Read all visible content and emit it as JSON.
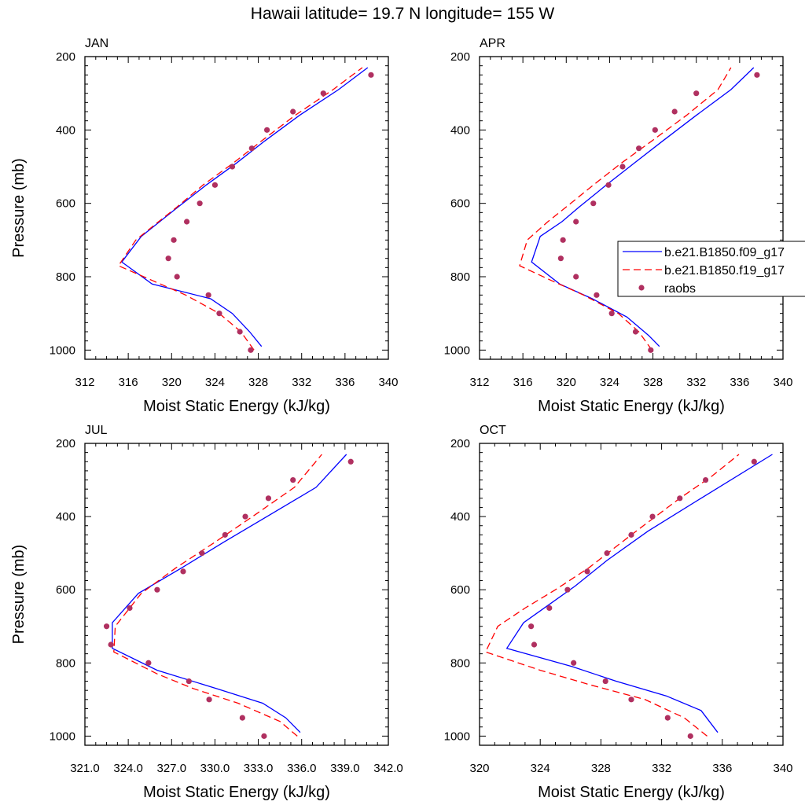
{
  "page": {
    "title": "Hawaii  latitude= 19.7 N longitude= 155 W"
  },
  "legend": {
    "position": "right of APR panel, clipped at right edge",
    "entries": [
      {
        "label": "b.e21.B1850.f09_g17",
        "style": "solid",
        "color": "#0000ff"
      },
      {
        "label": "b.e21.B1850.f19_g17",
        "style": "dashed",
        "color": "#ff0000"
      },
      {
        "label": "raobs",
        "style": "dot",
        "color": "#b03060"
      }
    ]
  },
  "chart_data": [
    {
      "type": "line",
      "title": "JAN",
      "xlabel": "Moist Static Energy (kJ/kg)",
      "ylabel": "Pressure (mb)",
      "xlim": [
        312,
        340
      ],
      "ylim": [
        1025,
        200
      ],
      "xticks": [
        312,
        316,
        320,
        324,
        328,
        332,
        336,
        340
      ],
      "xtick_labels": [
        "312",
        "316",
        "320",
        "324",
        "328",
        "332",
        "336",
        "340"
      ],
      "yticks": [
        200,
        400,
        600,
        800,
        1000
      ],
      "ytick_labels": [
        "200",
        "400",
        "600",
        "800",
        "1000"
      ],
      "grid": false,
      "series": [
        {
          "name": "b.e21.B1850.f09_g17",
          "style": "solid",
          "color": "#0000ff",
          "points": [
            [
              328.3,
              990
            ],
            [
              327.2,
              950
            ],
            [
              325.6,
              900
            ],
            [
              323.6,
              860
            ],
            [
              318.2,
              820
            ],
            [
              315.4,
              760
            ],
            [
              317.2,
              690
            ],
            [
              318.9,
              650
            ],
            [
              320.6,
              610
            ],
            [
              323.2,
              550
            ],
            [
              326.0,
              490
            ],
            [
              328.6,
              430
            ],
            [
              331.8,
              360
            ],
            [
              335.4,
              290
            ],
            [
              338.1,
              230
            ]
          ]
        },
        {
          "name": "b.e21.B1850.f19_g17",
          "style": "dashed",
          "color": "#ff0000",
          "points": [
            [
              327.6,
              1000
            ],
            [
              326.4,
              950
            ],
            [
              324.4,
              900
            ],
            [
              321.3,
              850
            ],
            [
              318.2,
              810
            ],
            [
              315.1,
              770
            ],
            [
              316.7,
              700
            ],
            [
              318.8,
              650
            ],
            [
              320.5,
              610
            ],
            [
              322.9,
              550
            ],
            [
              325.7,
              490
            ],
            [
              328.3,
              430
            ],
            [
              331.4,
              360
            ],
            [
              334.9,
              290
            ],
            [
              337.6,
              230
            ]
          ]
        },
        {
          "name": "raobs",
          "style": "dot",
          "color": "#b03060",
          "points": [
            [
              327.3,
              1000
            ],
            [
              326.3,
              950
            ],
            [
              324.4,
              900
            ],
            [
              323.4,
              850
            ],
            [
              320.5,
              800
            ],
            [
              319.7,
              750
            ],
            [
              320.2,
              700
            ],
            [
              321.4,
              650
            ],
            [
              322.6,
              600
            ],
            [
              324.0,
              550
            ],
            [
              325.6,
              500
            ],
            [
              327.4,
              450
            ],
            [
              328.8,
              400
            ],
            [
              331.2,
              350
            ],
            [
              334.0,
              300
            ],
            [
              338.4,
              250
            ]
          ]
        }
      ]
    },
    {
      "type": "line",
      "title": "APR",
      "xlabel": "Moist Static Energy (kJ/kg)",
      "ylabel": "",
      "xlim": [
        312,
        340
      ],
      "ylim": [
        1025,
        200
      ],
      "xticks": [
        312,
        316,
        320,
        324,
        328,
        332,
        336,
        340
      ],
      "xtick_labels": [
        "312",
        "316",
        "320",
        "324",
        "328",
        "332",
        "336",
        "340"
      ],
      "yticks": [
        200,
        400,
        600,
        800,
        1000
      ],
      "ytick_labels": [
        "200",
        "400",
        "600",
        "800",
        "1000"
      ],
      "grid": false,
      "series": [
        {
          "name": "b.e21.B1850.f09_g17",
          "style": "solid",
          "color": "#0000ff",
          "points": [
            [
              328.6,
              990
            ],
            [
              327.6,
              960
            ],
            [
              325.6,
              910
            ],
            [
              322.4,
              860
            ],
            [
              319.4,
              820
            ],
            [
              316.8,
              760
            ],
            [
              317.6,
              690
            ],
            [
              319.6,
              650
            ],
            [
              321.2,
              610
            ],
            [
              323.7,
              550
            ],
            [
              326.3,
              490
            ],
            [
              328.9,
              430
            ],
            [
              332.0,
              360
            ],
            [
              335.2,
              290
            ],
            [
              337.3,
              230
            ]
          ]
        },
        {
          "name": "b.e21.B1850.f19_g17",
          "style": "dashed",
          "color": "#ff0000",
          "points": [
            [
              327.9,
              1000
            ],
            [
              326.7,
              950
            ],
            [
              324.8,
              900
            ],
            [
              321.6,
              850
            ],
            [
              318.6,
              810
            ],
            [
              315.7,
              770
            ],
            [
              316.4,
              700
            ],
            [
              318.3,
              650
            ],
            [
              320.0,
              610
            ],
            [
              322.5,
              550
            ],
            [
              325.1,
              490
            ],
            [
              327.9,
              430
            ],
            [
              331.1,
              360
            ],
            [
              334.0,
              290
            ],
            [
              335.2,
              230
            ]
          ]
        },
        {
          "name": "raobs",
          "style": "dot",
          "color": "#b03060",
          "points": [
            [
              327.8,
              1000
            ],
            [
              326.4,
              950
            ],
            [
              324.2,
              900
            ],
            [
              322.8,
              850
            ],
            [
              320.9,
              800
            ],
            [
              319.5,
              750
            ],
            [
              319.7,
              700
            ],
            [
              320.9,
              650
            ],
            [
              322.5,
              600
            ],
            [
              323.9,
              550
            ],
            [
              325.2,
              500
            ],
            [
              326.7,
              450
            ],
            [
              328.2,
              400
            ],
            [
              330.0,
              350
            ],
            [
              332.0,
              300
            ],
            [
              337.6,
              250
            ]
          ]
        }
      ]
    },
    {
      "type": "line",
      "title": "JUL",
      "xlabel": "Moist Static Energy (kJ/kg)",
      "ylabel": "Pressure (mb)",
      "xlim": [
        321,
        342
      ],
      "ylim": [
        1025,
        200
      ],
      "xticks": [
        321,
        324,
        327,
        330,
        333,
        336,
        339,
        342
      ],
      "xtick_labels": [
        "321.0",
        "324.0",
        "327.0",
        "330.0",
        "333.0",
        "336.0",
        "339.0",
        "342.0"
      ],
      "yticks": [
        200,
        400,
        600,
        800,
        1000
      ],
      "ytick_labels": [
        "200",
        "400",
        "600",
        "800",
        "1000"
      ],
      "grid": false,
      "series": [
        {
          "name": "b.e21.B1850.f09_g17",
          "style": "solid",
          "color": "#0000ff",
          "points": [
            [
              335.9,
              990
            ],
            [
              334.9,
              950
            ],
            [
              333.3,
              910
            ],
            [
              330.1,
              870
            ],
            [
              326.0,
              820
            ],
            [
              322.9,
              760
            ],
            [
              322.9,
              690
            ],
            [
              324.7,
              610
            ],
            [
              327.7,
              540
            ],
            [
              330.6,
              470
            ],
            [
              333.6,
              400
            ],
            [
              337.0,
              320
            ],
            [
              339.1,
              230
            ]
          ]
        },
        {
          "name": "b.e21.B1850.f19_g17",
          "style": "dashed",
          "color": "#ff0000",
          "points": [
            [
              335.7,
              1000
            ],
            [
              334.5,
              960
            ],
            [
              331.6,
              910
            ],
            [
              328.5,
              870
            ],
            [
              326.0,
              830
            ],
            [
              323.0,
              770
            ],
            [
              323.1,
              700
            ],
            [
              324.9,
              610
            ],
            [
              327.3,
              540
            ],
            [
              330.0,
              470
            ],
            [
              332.6,
              400
            ],
            [
              335.5,
              320
            ],
            [
              337.4,
              230
            ]
          ]
        },
        {
          "name": "raobs",
          "style": "dot",
          "color": "#b03060",
          "points": [
            [
              333.4,
              1000
            ],
            [
              331.9,
              950
            ],
            [
              329.6,
              900
            ],
            [
              328.2,
              850
            ],
            [
              325.4,
              800
            ],
            [
              322.8,
              750
            ],
            [
              322.5,
              700
            ],
            [
              324.1,
              650
            ],
            [
              326.0,
              600
            ],
            [
              327.8,
              550
            ],
            [
              329.1,
              500
            ],
            [
              330.7,
              450
            ],
            [
              332.1,
              400
            ],
            [
              333.7,
              350
            ],
            [
              335.4,
              300
            ],
            [
              339.4,
              250
            ]
          ]
        }
      ]
    },
    {
      "type": "line",
      "title": "OCT",
      "xlabel": "Moist Static Energy (kJ/kg)",
      "ylabel": "",
      "xlim": [
        320,
        340
      ],
      "ylim": [
        1025,
        200
      ],
      "xticks": [
        320,
        324,
        328,
        332,
        336,
        340
      ],
      "xtick_labels": [
        "320",
        "324",
        "328",
        "332",
        "336",
        "340"
      ],
      "yticks": [
        200,
        400,
        600,
        800,
        1000
      ],
      "ytick_labels": [
        "200",
        "400",
        "600",
        "800",
        "1000"
      ],
      "grid": false,
      "series": [
        {
          "name": "b.e21.B1850.f09_g17",
          "style": "solid",
          "color": "#0000ff",
          "points": [
            [
              335.7,
              990
            ],
            [
              334.6,
              930
            ],
            [
              332.3,
              890
            ],
            [
              329.0,
              850
            ],
            [
              326.1,
              810
            ],
            [
              321.8,
              760
            ],
            [
              322.9,
              690
            ],
            [
              324.6,
              640
            ],
            [
              326.3,
              590
            ],
            [
              328.4,
              520
            ],
            [
              331.1,
              440
            ],
            [
              334.6,
              350
            ],
            [
              339.3,
              230
            ]
          ]
        },
        {
          "name": "b.e21.B1850.f19_g17",
          "style": "dashed",
          "color": "#ff0000",
          "points": [
            [
              335.0,
              1000
            ],
            [
              333.5,
              950
            ],
            [
              330.9,
              900
            ],
            [
              327.3,
              860
            ],
            [
              324.0,
              820
            ],
            [
              320.4,
              770
            ],
            [
              321.2,
              700
            ],
            [
              323.0,
              650
            ],
            [
              325.0,
              600
            ],
            [
              327.2,
              540
            ],
            [
              330.0,
              450
            ],
            [
              333.2,
              350
            ],
            [
              335.3,
              290
            ],
            [
              337.1,
              230
            ]
          ]
        },
        {
          "name": "raobs",
          "style": "dot",
          "color": "#b03060",
          "points": [
            [
              333.9,
              1000
            ],
            [
              332.4,
              950
            ],
            [
              330.0,
              900
            ],
            [
              328.3,
              850
            ],
            [
              326.2,
              800
            ],
            [
              323.6,
              750
            ],
            [
              323.4,
              700
            ],
            [
              324.6,
              650
            ],
            [
              325.8,
              600
            ],
            [
              327.1,
              550
            ],
            [
              328.4,
              500
            ],
            [
              330.0,
              450
            ],
            [
              331.4,
              400
            ],
            [
              333.2,
              350
            ],
            [
              334.9,
              300
            ],
            [
              338.1,
              250
            ]
          ]
        }
      ]
    }
  ]
}
